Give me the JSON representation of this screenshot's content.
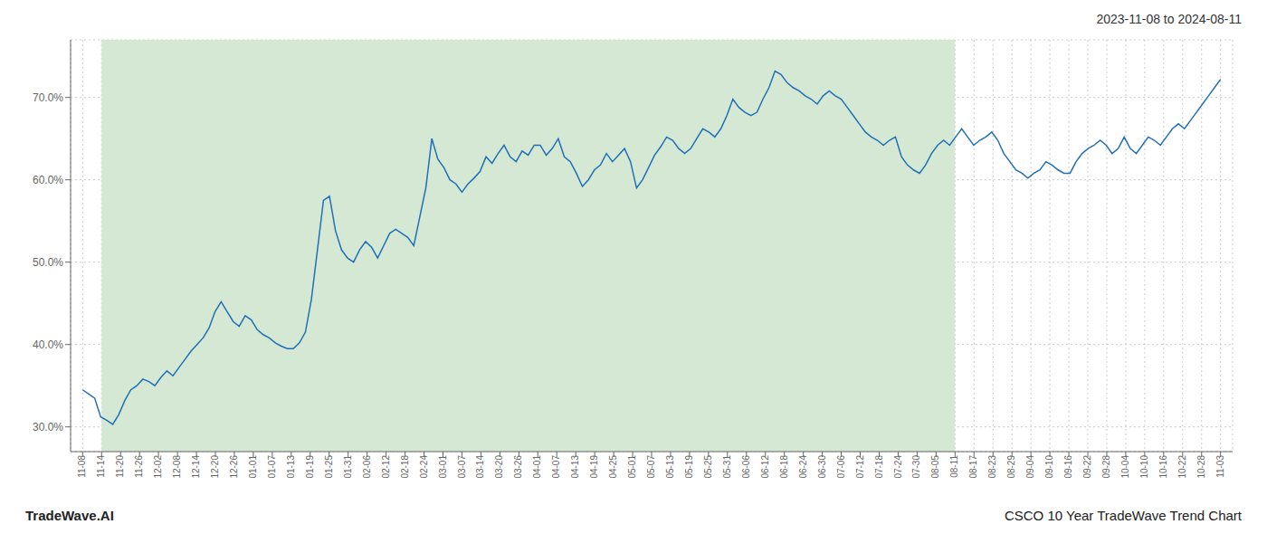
{
  "chart_data": {
    "type": "line",
    "title": "2023-11-08 to 2024-08-11",
    "annotations": [
      "TradeWave.AI",
      "CSCO 10 Year TradeWave Trend Chart"
    ],
    "color": "#2070b8",
    "grid": true,
    "xlim": [
      -2,
      191
    ],
    "xticks": [
      {
        "value": 0,
        "label": "11-08"
      },
      {
        "value": 3.15,
        "label": "11-14"
      },
      {
        "value": 6.3,
        "label": "11-20"
      },
      {
        "value": 9.45,
        "label": "11-26"
      },
      {
        "value": 12.6,
        "label": "12-02"
      },
      {
        "value": 15.75,
        "label": "12-08"
      },
      {
        "value": 18.9,
        "label": "12-14"
      },
      {
        "value": 22.05,
        "label": "12-20"
      },
      {
        "value": 25.2,
        "label": "12-26"
      },
      {
        "value": 28.35,
        "label": "01-01"
      },
      {
        "value": 31.5,
        "label": "01-07"
      },
      {
        "value": 34.65,
        "label": "01-13"
      },
      {
        "value": 37.8,
        "label": "01-19"
      },
      {
        "value": 40.95,
        "label": "01-25"
      },
      {
        "value": 44.1,
        "label": "01-31"
      },
      {
        "value": 47.25,
        "label": "02-06"
      },
      {
        "value": 50.4,
        "label": "02-12"
      },
      {
        "value": 53.55,
        "label": "02-18"
      },
      {
        "value": 56.7,
        "label": "02-24"
      },
      {
        "value": 59.85,
        "label": "03-01"
      },
      {
        "value": 63,
        "label": "03-07"
      },
      {
        "value": 66.15,
        "label": "03-14"
      },
      {
        "value": 69.3,
        "label": "03-20"
      },
      {
        "value": 72.45,
        "label": "03-26"
      },
      {
        "value": 75.6,
        "label": "04-01"
      },
      {
        "value": 78.75,
        "label": "04-07"
      },
      {
        "value": 81.9,
        "label": "04-13"
      },
      {
        "value": 85.05,
        "label": "04-19"
      },
      {
        "value": 88.2,
        "label": "04-25"
      },
      {
        "value": 91.35,
        "label": "05-01"
      },
      {
        "value": 94.5,
        "label": "05-07"
      },
      {
        "value": 97.65,
        "label": "05-13"
      },
      {
        "value": 100.8,
        "label": "05-19"
      },
      {
        "value": 103.95,
        "label": "05-25"
      },
      {
        "value": 107.1,
        "label": "05-31"
      },
      {
        "value": 110.25,
        "label": "06-06"
      },
      {
        "value": 113.4,
        "label": "06-12"
      },
      {
        "value": 116.55,
        "label": "06-18"
      },
      {
        "value": 119.7,
        "label": "06-24"
      },
      {
        "value": 122.85,
        "label": "06-30"
      },
      {
        "value": 126,
        "label": "07-06"
      },
      {
        "value": 129.15,
        "label": "07-12"
      },
      {
        "value": 132.3,
        "label": "07-18"
      },
      {
        "value": 135.45,
        "label": "07-24"
      },
      {
        "value": 138.6,
        "label": "07-30"
      },
      {
        "value": 141.75,
        "label": "08-05"
      },
      {
        "value": 144.9,
        "label": "08-11"
      },
      {
        "value": 148.05,
        "label": "08-17"
      },
      {
        "value": 151.2,
        "label": "08-23"
      },
      {
        "value": 154.35,
        "label": "08-29"
      },
      {
        "value": 157.5,
        "label": "09-04"
      },
      {
        "value": 160.65,
        "label": "09-10"
      },
      {
        "value": 163.8,
        "label": "09-16"
      },
      {
        "value": 166.95,
        "label": "09-22"
      },
      {
        "value": 170.1,
        "label": "09-28"
      },
      {
        "value": 173.25,
        "label": "10-04"
      },
      {
        "value": 176.4,
        "label": "10-10"
      },
      {
        "value": 179.55,
        "label": "10-16"
      },
      {
        "value": 182.7,
        "label": "10-22"
      },
      {
        "value": 185.85,
        "label": "10-28"
      },
      {
        "value": 189,
        "label": "11-03"
      }
    ],
    "ylim": [
      27,
      77
    ],
    "yticks": [
      {
        "value": 30,
        "label": "30.0%"
      },
      {
        "value": 40,
        "label": "40.0%"
      },
      {
        "value": 50,
        "label": "50.0%"
      },
      {
        "value": 60,
        "label": "60.0%"
      },
      {
        "value": 70,
        "label": "70.0%"
      }
    ],
    "shaded_region": {
      "from": 3.15,
      "to": 144.9,
      "color": "#d4e8d4"
    },
    "values": [
      34.5,
      34.0,
      33.5,
      31.2,
      30.8,
      30.3,
      31.5,
      33.2,
      34.5,
      35.0,
      35.8,
      35.5,
      35.0,
      36.0,
      36.8,
      36.2,
      37.2,
      38.2,
      39.2,
      40.0,
      40.8,
      42.0,
      44.0,
      45.2,
      44.0,
      42.8,
      42.2,
      43.5,
      43.0,
      41.8,
      41.2,
      40.8,
      40.2,
      39.8,
      39.5,
      39.5,
      40.2,
      41.5,
      45.5,
      51.5,
      57.5,
      58.0,
      53.8,
      51.5,
      50.5,
      50.0,
      51.5,
      52.5,
      51.8,
      50.5,
      52.0,
      53.5,
      54.0,
      53.5,
      53.0,
      52.0,
      55.5,
      59.0,
      65.0,
      62.5,
      61.5,
      60.0,
      59.5,
      58.5,
      59.5,
      60.2,
      61.0,
      62.8,
      62.0,
      63.2,
      64.2,
      62.8,
      62.2,
      63.5,
      63.0,
      64.2,
      64.2,
      63.0,
      63.8,
      65.0,
      62.8,
      62.2,
      60.8,
      59.2,
      60.0,
      61.2,
      61.8,
      63.2,
      62.2,
      63.0,
      63.8,
      62.2,
      59.0,
      60.0,
      61.5,
      63.0,
      64.0,
      65.2,
      64.8,
      63.8,
      63.2,
      63.8,
      65.0,
      66.2,
      65.8,
      65.2,
      66.2,
      67.8,
      69.8,
      68.8,
      68.2,
      67.8,
      68.2,
      69.8,
      71.2,
      73.2,
      72.8,
      71.8,
      71.2,
      70.8,
      70.2,
      69.8,
      69.2,
      70.2,
      70.8,
      70.2,
      69.8,
      68.8,
      67.8,
      66.8,
      65.8,
      65.2,
      64.8,
      64.2,
      64.8,
      65.2,
      62.8,
      61.8,
      61.2,
      60.8,
      61.8,
      63.2,
      64.2,
      64.8,
      64.2,
      65.2,
      66.2,
      65.2,
      64.2,
      64.8,
      65.2,
      65.8,
      64.8,
      63.2,
      62.2,
      61.2,
      60.8,
      60.2,
      60.8,
      61.2,
      62.2,
      61.8,
      61.2,
      60.8,
      60.8,
      62.2,
      63.2,
      63.8,
      64.2,
      64.8,
      64.2,
      63.2,
      63.8,
      65.2,
      63.8,
      63.2,
      64.2,
      65.2,
      64.8,
      64.2,
      65.2,
      66.2,
      66.8,
      66.2,
      67.2,
      68.2,
      69.2,
      70.2,
      71.2,
      72.2
    ]
  }
}
